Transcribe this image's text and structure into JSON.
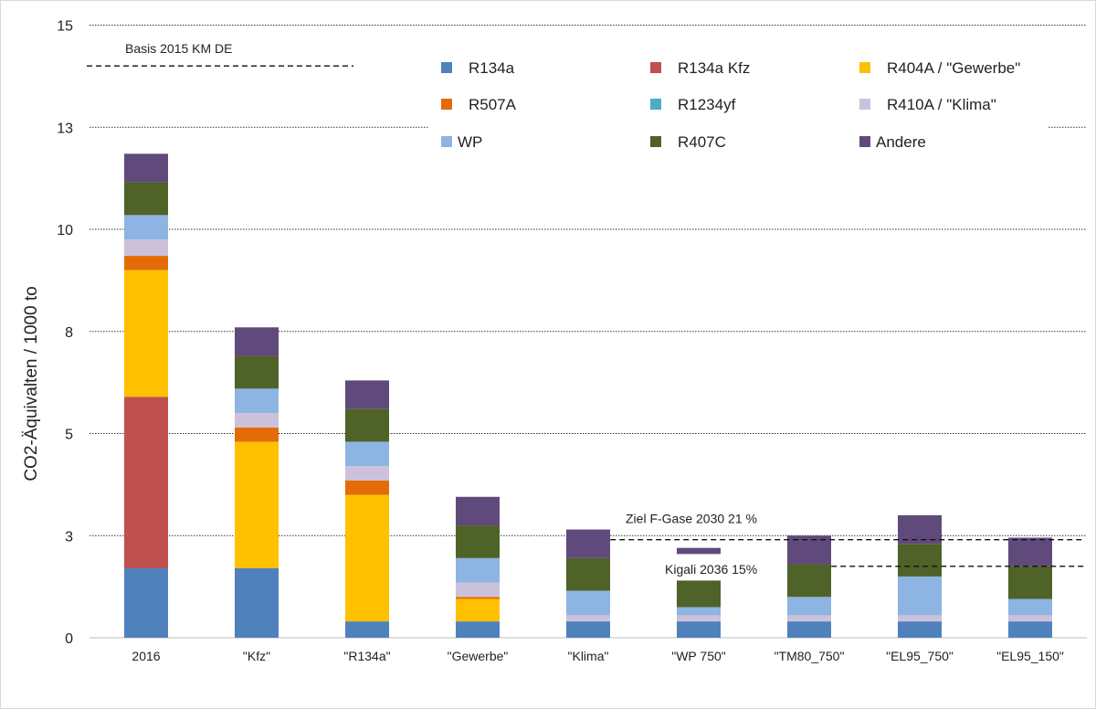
{
  "chart_data": {
    "type": "bar",
    "stacked": true,
    "ylabel": "CO2-Äquivalten / 1000 to",
    "xlabel": "",
    "ylim": [
      0,
      15.5
    ],
    "yticks": [
      0,
      2.5,
      5,
      7.5,
      10,
      12.5,
      15
    ],
    "ytick_labels": [
      "0",
      "3",
      "5",
      "8",
      "10",
      "13",
      "15"
    ],
    "grid": "horizontal dotted",
    "legend_position": "top-right",
    "categories": [
      "2016",
      "\"Kfz\"",
      "\"R134a\"",
      "\"Gewerbe\"",
      "\"Klima\"",
      "\"WP 750\"",
      "\"TM80_750\"",
      "\"EL95_750\"",
      "\"EL95_150\""
    ],
    "series": [
      {
        "name": "R134a",
        "color": "#4f81bd",
        "values": [
          1.7,
          1.7,
          0.4,
          0.4,
          0.4,
          0.4,
          0.4,
          0.4,
          0.4
        ]
      },
      {
        "name": "R134a Kfz",
        "color": "#c0504d",
        "values": [
          4.2,
          0,
          0,
          0,
          0,
          0,
          0,
          0,
          0
        ]
      },
      {
        "name": "R404A / \"Gewerbe\"",
        "color": "#ffc000",
        "values": [
          3.1,
          3.1,
          3.1,
          0.55,
          0,
          0,
          0,
          0,
          0
        ]
      },
      {
        "name": "R507A",
        "color": "#e36c09",
        "values": [
          0.35,
          0.35,
          0.35,
          0.05,
          0,
          0,
          0,
          0,
          0
        ]
      },
      {
        "name": "R1234yf",
        "color": "#4bacc6",
        "values": [
          0,
          0,
          0,
          0,
          0,
          0,
          0,
          0,
          0
        ]
      },
      {
        "name": "R410A / \"Klima\"",
        "color": "#ccc1da",
        "values": [
          0.4,
          0.35,
          0.35,
          0.35,
          0.15,
          0.15,
          0.15,
          0.15,
          0.15
        ]
      },
      {
        "name": "WP",
        "color": "#8db4e2",
        "values": [
          0.6,
          0.6,
          0.6,
          0.6,
          0.6,
          0.2,
          0.45,
          0.95,
          0.4
        ]
      },
      {
        "name": "R407C",
        "color": "#4f6228",
        "values": [
          0.8,
          0.8,
          0.8,
          0.8,
          0.8,
          0.65,
          0.8,
          0.8,
          0.8
        ]
      },
      {
        "name": "Andere",
        "color": "#604a7b",
        "values": [
          0.7,
          0.7,
          0.7,
          0.7,
          0.7,
          0.15,
          0.7,
          0.7,
          0.7
        ]
      }
    ],
    "special_offsets": [
      {
        "category": "\"WP 750\"",
        "series": "Andere",
        "value_bottom": 2.05
      }
    ],
    "reference_lines": [
      {
        "label": "Basis 2015 KM DE",
        "value": 14.0,
        "from_category": 0,
        "to_category": 2
      },
      {
        "label": "Ziel F-Gase 2030 21 %",
        "value": 2.4,
        "from_category": 4.2,
        "to_category": 8.5
      },
      {
        "label": "Kigali 2036 15%",
        "value": 1.75,
        "from_category": 6.2,
        "to_category": 8.5
      }
    ]
  }
}
